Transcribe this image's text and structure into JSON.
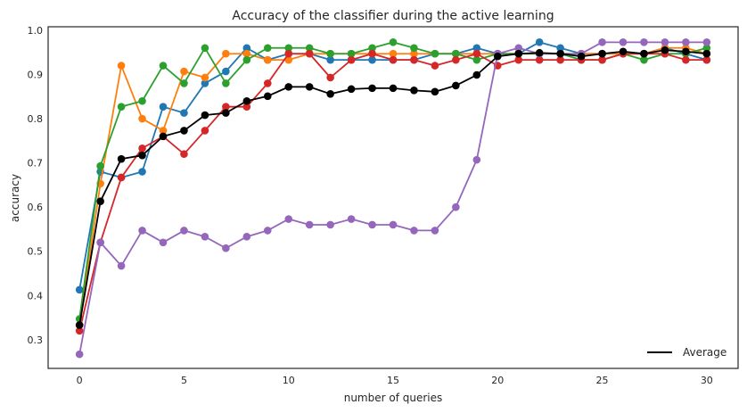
{
  "chart_data": {
    "type": "line",
    "title": "Accuracy of the classifier during the active learning",
    "xlabel": "number of queries",
    "ylabel": "accuracy",
    "xlim": [
      -1.5,
      31.5
    ],
    "ylim": [
      0.235,
      1.008
    ],
    "xticks": [
      0,
      5,
      10,
      15,
      20,
      25,
      30
    ],
    "yticks": [
      0.3,
      0.4,
      0.5,
      0.6,
      0.7,
      0.8,
      0.9,
      1.0
    ],
    "ytick_labels": [
      "0.3",
      "0.4",
      "0.5",
      "0.6",
      "0.7",
      "0.8",
      "0.9",
      "1.0"
    ],
    "grid": false,
    "legend": {
      "position": "bottom-right",
      "entries": [
        "Average"
      ]
    },
    "x": [
      0,
      1,
      2,
      3,
      4,
      5,
      6,
      7,
      8,
      9,
      10,
      11,
      12,
      13,
      14,
      15,
      16,
      17,
      18,
      19,
      20,
      21,
      22,
      23,
      24,
      25,
      26,
      27,
      28,
      29,
      30
    ],
    "series": [
      {
        "color": "#1f77b4",
        "values": [
          0.413,
          0.68,
          0.667,
          0.68,
          0.827,
          0.813,
          0.88,
          0.907,
          0.96,
          0.933,
          0.947,
          0.947,
          0.933,
          0.933,
          0.933,
          0.933,
          0.933,
          0.947,
          0.947,
          0.96,
          0.947,
          0.947,
          0.973,
          0.96,
          0.947,
          0.947,
          0.947,
          0.947,
          0.96,
          0.947,
          0.933
        ]
      },
      {
        "color": "#ff7f0e",
        "values": [
          0.333,
          0.653,
          0.92,
          0.8,
          0.773,
          0.907,
          0.893,
          0.947,
          0.947,
          0.933,
          0.933,
          0.947,
          0.947,
          0.947,
          0.947,
          0.947,
          0.947,
          0.947,
          0.947,
          0.947,
          0.947,
          0.947,
          0.947,
          0.947,
          0.947,
          0.947,
          0.947,
          0.947,
          0.96,
          0.96,
          0.947
        ]
      },
      {
        "color": "#2ca02c",
        "values": [
          0.347,
          0.693,
          0.827,
          0.84,
          0.92,
          0.88,
          0.96,
          0.88,
          0.933,
          0.96,
          0.96,
          0.96,
          0.947,
          0.947,
          0.96,
          0.973,
          0.96,
          0.947,
          0.947,
          0.933,
          0.947,
          0.947,
          0.947,
          0.947,
          0.933,
          0.933,
          0.947,
          0.933,
          0.947,
          0.947,
          0.96
        ]
      },
      {
        "color": "#d62728",
        "values": [
          0.32,
          0.52,
          0.667,
          0.733,
          0.76,
          0.72,
          0.773,
          0.827,
          0.827,
          0.88,
          0.947,
          0.947,
          0.893,
          0.933,
          0.947,
          0.933,
          0.933,
          0.92,
          0.933,
          0.947,
          0.92,
          0.933,
          0.933,
          0.933,
          0.933,
          0.933,
          0.947,
          0.947,
          0.947,
          0.933,
          0.933
        ]
      },
      {
        "color": "#9467bd",
        "values": [
          0.267,
          0.52,
          0.467,
          0.547,
          0.52,
          0.547,
          0.533,
          0.507,
          0.533,
          0.547,
          0.573,
          0.56,
          0.56,
          0.573,
          0.56,
          0.56,
          0.547,
          0.547,
          0.6,
          0.707,
          0.947,
          0.96,
          0.947,
          0.947,
          0.947,
          0.973,
          0.973,
          0.973,
          0.973,
          0.973,
          0.973
        ]
      },
      {
        "name": "Average",
        "color": "#000000",
        "values": [
          0.333,
          0.613,
          0.709,
          0.717,
          0.76,
          0.773,
          0.808,
          0.813,
          0.84,
          0.851,
          0.872,
          0.872,
          0.856,
          0.867,
          0.869,
          0.869,
          0.864,
          0.861,
          0.875,
          0.899,
          0.941,
          0.947,
          0.949,
          0.947,
          0.941,
          0.947,
          0.952,
          0.947,
          0.955,
          0.952,
          0.947
        ]
      }
    ]
  }
}
